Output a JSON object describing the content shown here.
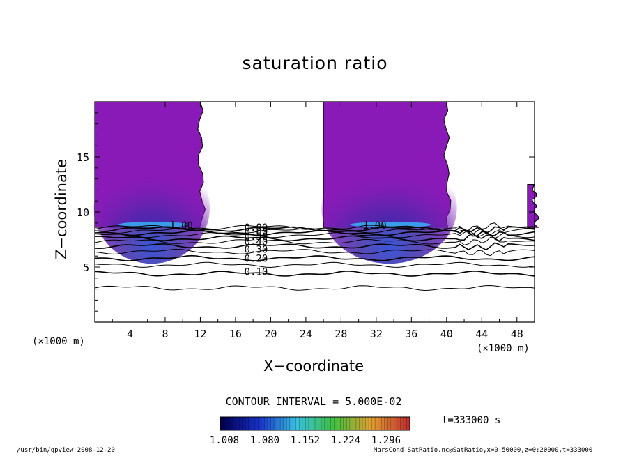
{
  "chart_data": {
    "type": "contour",
    "title": "saturation ratio",
    "xlabel": "X−coordinate",
    "ylabel": "Z−coordinate",
    "x_unit_left": "(×1000 m)",
    "x_unit_right": "(×1000 m)",
    "xlim": [
      0,
      50
    ],
    "ylim": [
      0,
      20
    ],
    "x_ticks": [
      4,
      8,
      12,
      16,
      20,
      24,
      28,
      32,
      36,
      40,
      44,
      48
    ],
    "y_ticks": [
      5,
      10,
      15
    ],
    "contour_interval": "CONTOUR INTERVAL = 5.000E-02",
    "contour_labels": [
      {
        "text": "1.00",
        "x": 8.5,
        "y": 8.8
      },
      {
        "text": "1.00",
        "x": 30.5,
        "y": 8.8
      },
      {
        "text": "0.80",
        "x": 17.0,
        "y": 8.6
      },
      {
        "text": "0.60",
        "x": 17.0,
        "y": 8.2
      },
      {
        "text": "0.50",
        "x": 17.0,
        "y": 7.8
      },
      {
        "text": "0.40",
        "x": 17.0,
        "y": 7.3
      },
      {
        "text": "0.30",
        "x": 17.0,
        "y": 6.6
      },
      {
        "text": "0.20",
        "x": 17.0,
        "y": 5.8
      },
      {
        "text": "0.10",
        "x": 17.0,
        "y": 4.6
      }
    ],
    "filled_regions": [
      {
        "x_start": 0.0,
        "x_end": 12.0,
        "z_start": 8.6,
        "z_end": 20.0
      },
      {
        "x_start": 26.0,
        "x_end": 40.0,
        "z_start": 8.6,
        "z_end": 20.0
      },
      {
        "x_start": 49.2,
        "x_end": 50.0,
        "z_start": 8.6,
        "z_end": 12.5
      }
    ],
    "colorbar": {
      "ticks": [
        "1.008",
        "1.080",
        "1.152",
        "1.224",
        "1.296"
      ],
      "colors": [
        "#000050",
        "#1830c8",
        "#38c0e0",
        "#40c040",
        "#e0a030",
        "#c03030"
      ]
    },
    "fill_color": "#8a1ab8",
    "time_label": "t=333000 s"
  },
  "footer": {
    "left": "/usr/bin/gpview   2008-12-20",
    "right": "MarsCond_SatRatio.nc@SatRatio,x=0:50000,z=0:20000,t=333000"
  }
}
